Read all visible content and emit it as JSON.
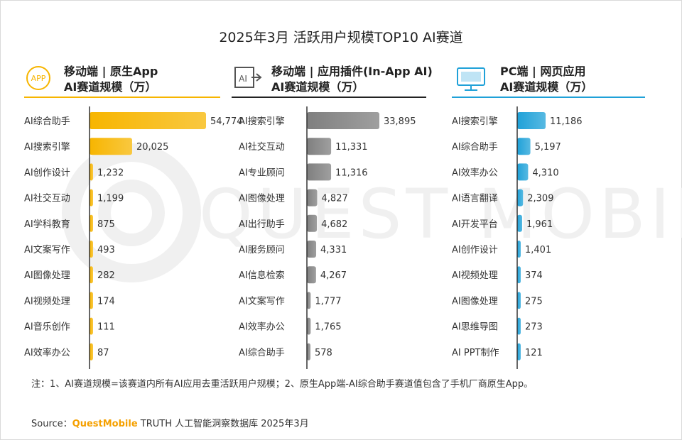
{
  "title": "2025年3月 活跃用户规模TOP10 AI赛道",
  "watermark": "QUEST MOBILE",
  "panels": [
    {
      "icon": "app-icon",
      "icon_text": "APP",
      "heading_line1": "移动端 | 原生App",
      "heading_line2": "AI赛道规模（万）",
      "color": "#f7b500"
    },
    {
      "icon": "ai-plugin-icon",
      "icon_text": "AI",
      "heading_line1": "移动端 | 应用插件(In-App AI)",
      "heading_line2": "AI赛道规模（万）",
      "color": "#7f7f7f"
    },
    {
      "icon": "pc-monitor-icon",
      "icon_text": "",
      "heading_line1": "PC端 | 网页应用",
      "heading_line2": "AI赛道规模（万）",
      "color": "#1fa1d8"
    }
  ],
  "chart_data": [
    {
      "type": "bar",
      "orientation": "horizontal",
      "title": "移动端 | 原生App AI赛道规模（万）",
      "categories": [
        "AI综合助手",
        "AI搜索引擎",
        "AI创作设计",
        "AI社交互动",
        "AI学科教育",
        "AI文案写作",
        "AI图像处理",
        "AI视频处理",
        "AI音乐创作",
        "AI效率办公"
      ],
      "values": [
        54774,
        20025,
        1232,
        1199,
        875,
        493,
        282,
        174,
        111,
        87
      ],
      "labels": [
        "54,774",
        "20,025",
        "1,232",
        "1,199",
        "875",
        "493",
        "282",
        "174",
        "111",
        "87"
      ],
      "color": "#f7b500"
    },
    {
      "type": "bar",
      "orientation": "horizontal",
      "title": "移动端 | 应用插件(In-App AI) AI赛道规模（万）",
      "categories": [
        "AI搜索引擎",
        "AI社交互动",
        "AI专业顾问",
        "AI图像处理",
        "AI出行助手",
        "AI服务顾问",
        "AI信息检索",
        "AI文案写作",
        "AI效率办公",
        "AI综合助手"
      ],
      "values": [
        33895,
        11331,
        11316,
        4827,
        4682,
        4331,
        4267,
        1777,
        1765,
        578
      ],
      "labels": [
        "33,895",
        "11,331",
        "11,316",
        "4,827",
        "4,682",
        "4,331",
        "4,267",
        "1,777",
        "1,765",
        "578"
      ],
      "color": "#7f7f7f"
    },
    {
      "type": "bar",
      "orientation": "horizontal",
      "title": "PC端 | 网页应用 AI赛道规模（万）",
      "categories": [
        "AI搜索引擎",
        "AI综合助手",
        "AI效率办公",
        "AI语言翻译",
        "AI开发平台",
        "AI创作设计",
        "AI视频处理",
        "AI图像处理",
        "AI思维导图",
        "AI PPT制作"
      ],
      "values": [
        11186,
        5197,
        4310,
        2309,
        1961,
        1401,
        374,
        275,
        273,
        121
      ],
      "labels": [
        "11,186",
        "5,197",
        "4,310",
        "2,309",
        "1,961",
        "1,401",
        "374",
        "275",
        "273",
        "121"
      ],
      "color": "#1fa1d8"
    }
  ],
  "note": "注：1、AI赛道规模=该赛道内所有AI应用去重活跃用户规模；2、原生App端-AI综合助手赛道值包含了手机厂商原生App。",
  "source": {
    "prefix": "Source：",
    "brand": "QuestMobile",
    "rest": " TRUTH 人工智能洞察数据库 2025年3月"
  }
}
